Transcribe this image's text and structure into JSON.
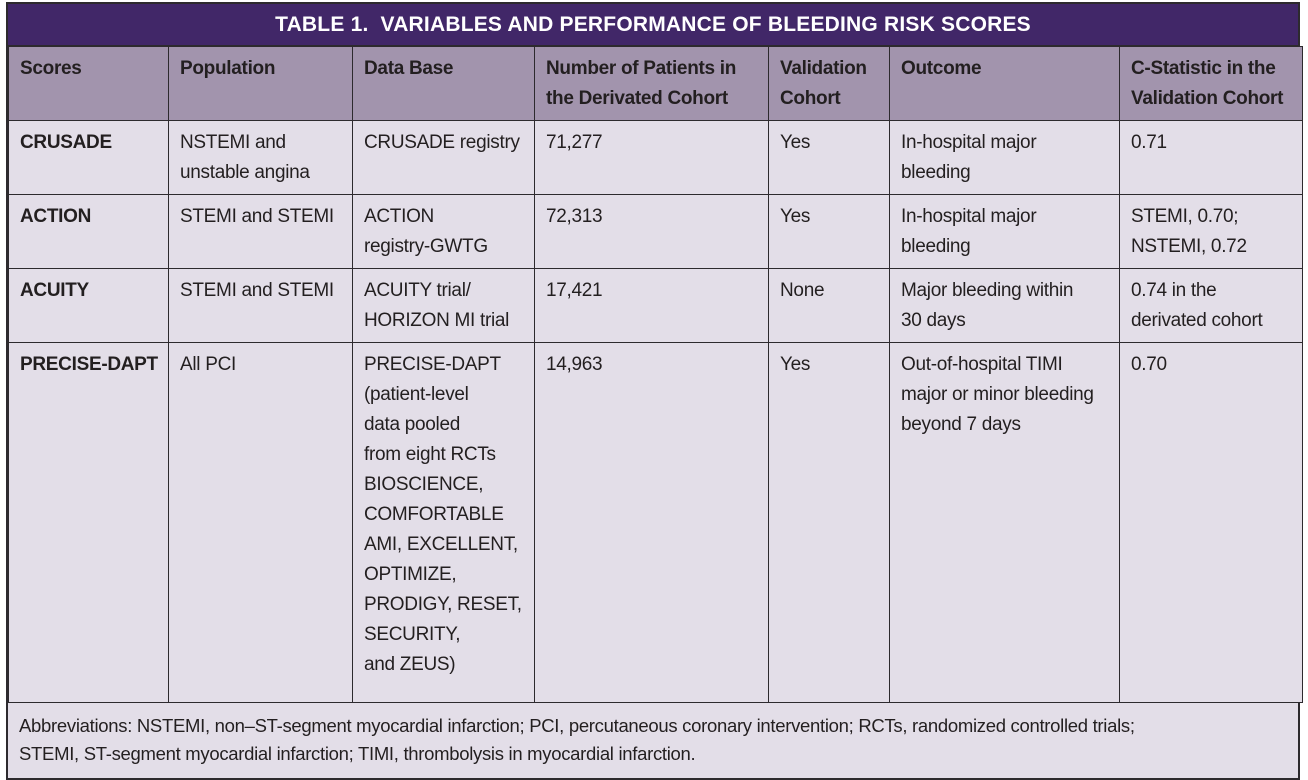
{
  "table": {
    "title": "TABLE 1.  VARIABLES AND PERFORMANCE OF BLEEDING RISK SCORES",
    "headers": [
      "Scores",
      "Population",
      "Data Base",
      "Number of Patients in\nthe Derivated Cohort",
      "Validation\nCohort",
      "Outcome",
      "C-Statistic in the\nValidation Cohort"
    ],
    "rows": [
      {
        "score": "CRUSADE",
        "population": "NSTEMI and\nunstable angina",
        "database": "CRUSADE registry",
        "patients": "71,277",
        "validation": "Yes",
        "outcome": "In-hospital major\nbleeding",
        "c_statistic": "0.71"
      },
      {
        "score": "ACTION",
        "population": "STEMI and STEMI",
        "database": "ACTION\nregistry-GWTG",
        "patients": "72,313",
        "validation": "Yes",
        "outcome": "In-hospital major\nbleeding",
        "c_statistic": "STEMI, 0.70;\nNSTEMI, 0.72"
      },
      {
        "score": "ACUITY",
        "population": "STEMI and STEMI",
        "database": "ACUITY trial/\nHORIZON MI trial",
        "patients": "17,421",
        "validation": "None",
        "outcome": "Major bleeding within\n30 days",
        "c_statistic": "0.74 in the\nderivated cohort"
      },
      {
        "score": "PRECISE-DAPT",
        "population": "All PCI",
        "database": "PRECISE-DAPT\n(patient-level\ndata pooled\nfrom eight RCTs\nBIOSCIENCE,\nCOMFORTABLE\nAMI, EXCELLENT,\nOPTIMIZE,\nPRODIGY, RESET,\nSECURITY,\nand ZEUS)",
        "patients": "14,963",
        "validation": "Yes",
        "outcome": "Out-of-hospital TIMI\nmajor or minor bleeding\nbeyond 7 days",
        "c_statistic": "0.70"
      }
    ],
    "footnote": "Abbreviations: NSTEMI, non–ST-segment myocardial infarction; PCI, percutaneous coronary intervention; RCTs, randomized controlled trials;\nSTEMI, ST-segment myocardial infarction; TIMI, thrombolysis in myocardial infarction."
  },
  "colors": {
    "title_bar": "#412768",
    "title_text": "#ffffff",
    "header_bg": "#a294ad",
    "cell_bg": "#e3dee8",
    "border": "#2d2a2e",
    "text": "#231f20"
  }
}
